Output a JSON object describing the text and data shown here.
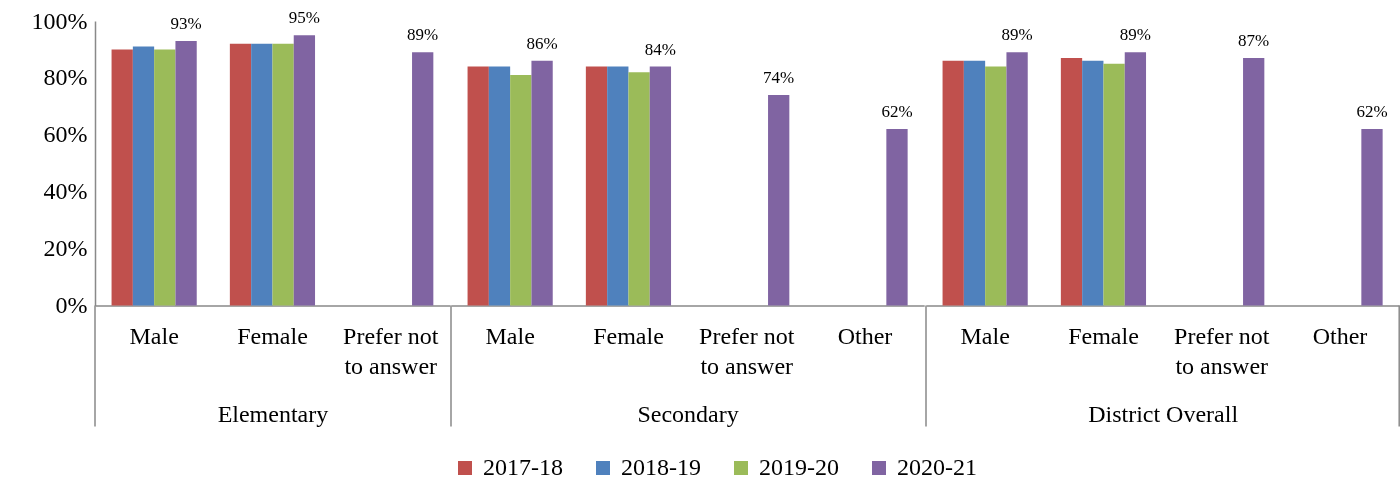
{
  "chart_data": [
    {
      "type": "bar",
      "xlabel": "Elementary",
      "categories": [
        "Male",
        "Female",
        "Prefer not to answer"
      ],
      "series": [
        {
          "name": "2017-18",
          "color": "#c0504d",
          "values": [
            90,
            92,
            null
          ]
        },
        {
          "name": "2018-19",
          "color": "#4f81bd",
          "values": [
            91,
            92,
            null
          ]
        },
        {
          "name": "2019-20",
          "color": "#9bbb59",
          "values": [
            90,
            92,
            null
          ]
        },
        {
          "name": "2020-21",
          "color": "#8064a2",
          "values": [
            93,
            95,
            89
          ],
          "value_labels": [
            "93%",
            "95%",
            "89%"
          ]
        }
      ],
      "ylim": [
        0,
        100
      ],
      "yticks": [
        {
          "value": 0,
          "label": "0%"
        },
        {
          "value": 20,
          "label": "20%"
        },
        {
          "value": 40,
          "label": "40%"
        },
        {
          "value": 60,
          "label": "60%"
        },
        {
          "value": 80,
          "label": "80%"
        },
        {
          "value": 100,
          "label": "100%"
        }
      ],
      "legend": "bottom"
    },
    {
      "type": "bar",
      "xlabel": "Secondary",
      "categories": [
        "Male",
        "Female",
        "Prefer not to answer",
        "Other"
      ],
      "series": [
        {
          "name": "2017-18",
          "color": "#c0504d",
          "values": [
            84,
            84,
            null,
            null
          ]
        },
        {
          "name": "2018-19",
          "color": "#4f81bd",
          "values": [
            84,
            84,
            null,
            null
          ]
        },
        {
          "name": "2019-20",
          "color": "#9bbb59",
          "values": [
            81,
            82,
            null,
            null
          ]
        },
        {
          "name": "2020-21",
          "color": "#8064a2",
          "values": [
            86,
            84,
            74,
            62
          ],
          "value_labels": [
            "86%",
            "84%",
            "74%",
            "62%"
          ]
        }
      ],
      "ylim": [
        0,
        100
      ],
      "tick_labels": "x",
      "legend": "bottom"
    },
    {
      "type": "bar",
      "xlabel": "District Overall",
      "categories": [
        "Male",
        "Female",
        "Prefer not to answer",
        "Other"
      ],
      "series": [
        {
          "name": "2017-18",
          "color": "#c0504d",
          "values": [
            86,
            87,
            null,
            null
          ]
        },
        {
          "name": "2018-19",
          "color": "#4f81bd",
          "values": [
            86,
            86,
            null,
            null
          ]
        },
        {
          "name": "2019-20",
          "color": "#9bbb59",
          "values": [
            84,
            85,
            null,
            null
          ]
        },
        {
          "name": "2020-21",
          "color": "#8064a2",
          "values": [
            89,
            89,
            87,
            62
          ],
          "value_labels": [
            "89%",
            "89%",
            "87%",
            "62%"
          ]
        }
      ],
      "ylim": [
        0,
        100
      ],
      "tick_labels": "x",
      "legend": "bottom"
    }
  ]
}
